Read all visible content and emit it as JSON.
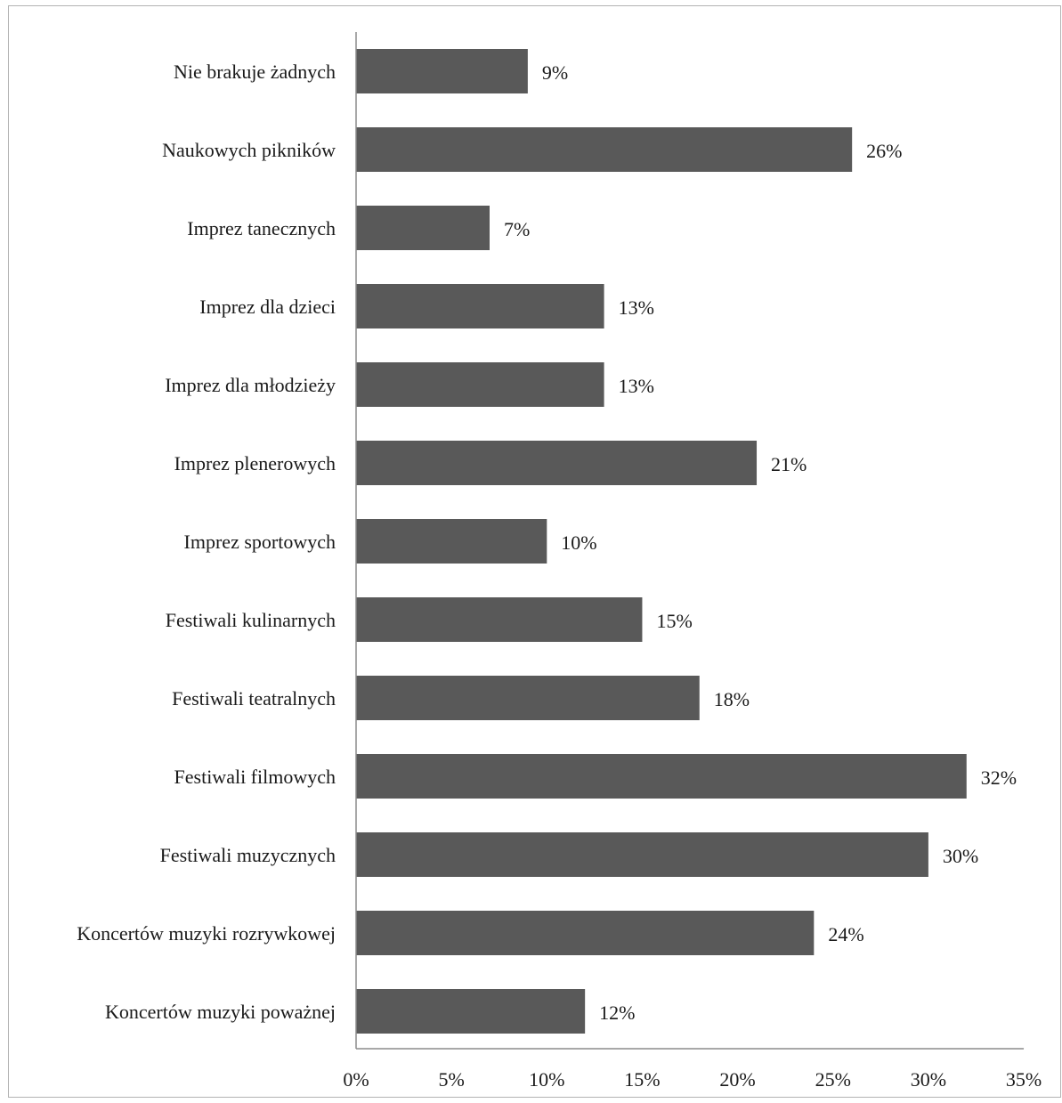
{
  "chart_data": {
    "type": "bar",
    "orientation": "horizontal",
    "title": "",
    "xlabel": "",
    "ylabel": "",
    "categories": [
      "Nie brakuje żadnych",
      "Naukowych pikników",
      "Imprez tanecznych",
      "Imprez dla dzieci",
      "Imprez dla młodzieży",
      "Imprez plenerowych",
      "Imprez sportowych",
      "Festiwali kulinarnych",
      "Festiwali teatralnych",
      "Festiwali filmowych",
      "Festiwali muzycznych",
      "Koncertów muzyki rozrywkowej",
      "Koncertów muzyki poważnej"
    ],
    "values": [
      9,
      26,
      7,
      13,
      13,
      21,
      10,
      15,
      18,
      32,
      30,
      24,
      12
    ],
    "value_labels": [
      "9%",
      "26%",
      "7%",
      "13%",
      "13%",
      "21%",
      "10%",
      "15%",
      "18%",
      "32%",
      "30%",
      "24%",
      "12%"
    ],
    "xlim": [
      0,
      35
    ],
    "x_ticks": [
      0,
      5,
      10,
      15,
      20,
      25,
      30,
      35
    ],
    "x_tick_labels": [
      "0%",
      "5%",
      "10%",
      "15%",
      "20%",
      "25%",
      "30%",
      "35%"
    ],
    "grid": false,
    "legend": "none",
    "bar_color": "#595959",
    "axis_color": "#8c8c8c",
    "frame_color": "#b3b3b3"
  }
}
